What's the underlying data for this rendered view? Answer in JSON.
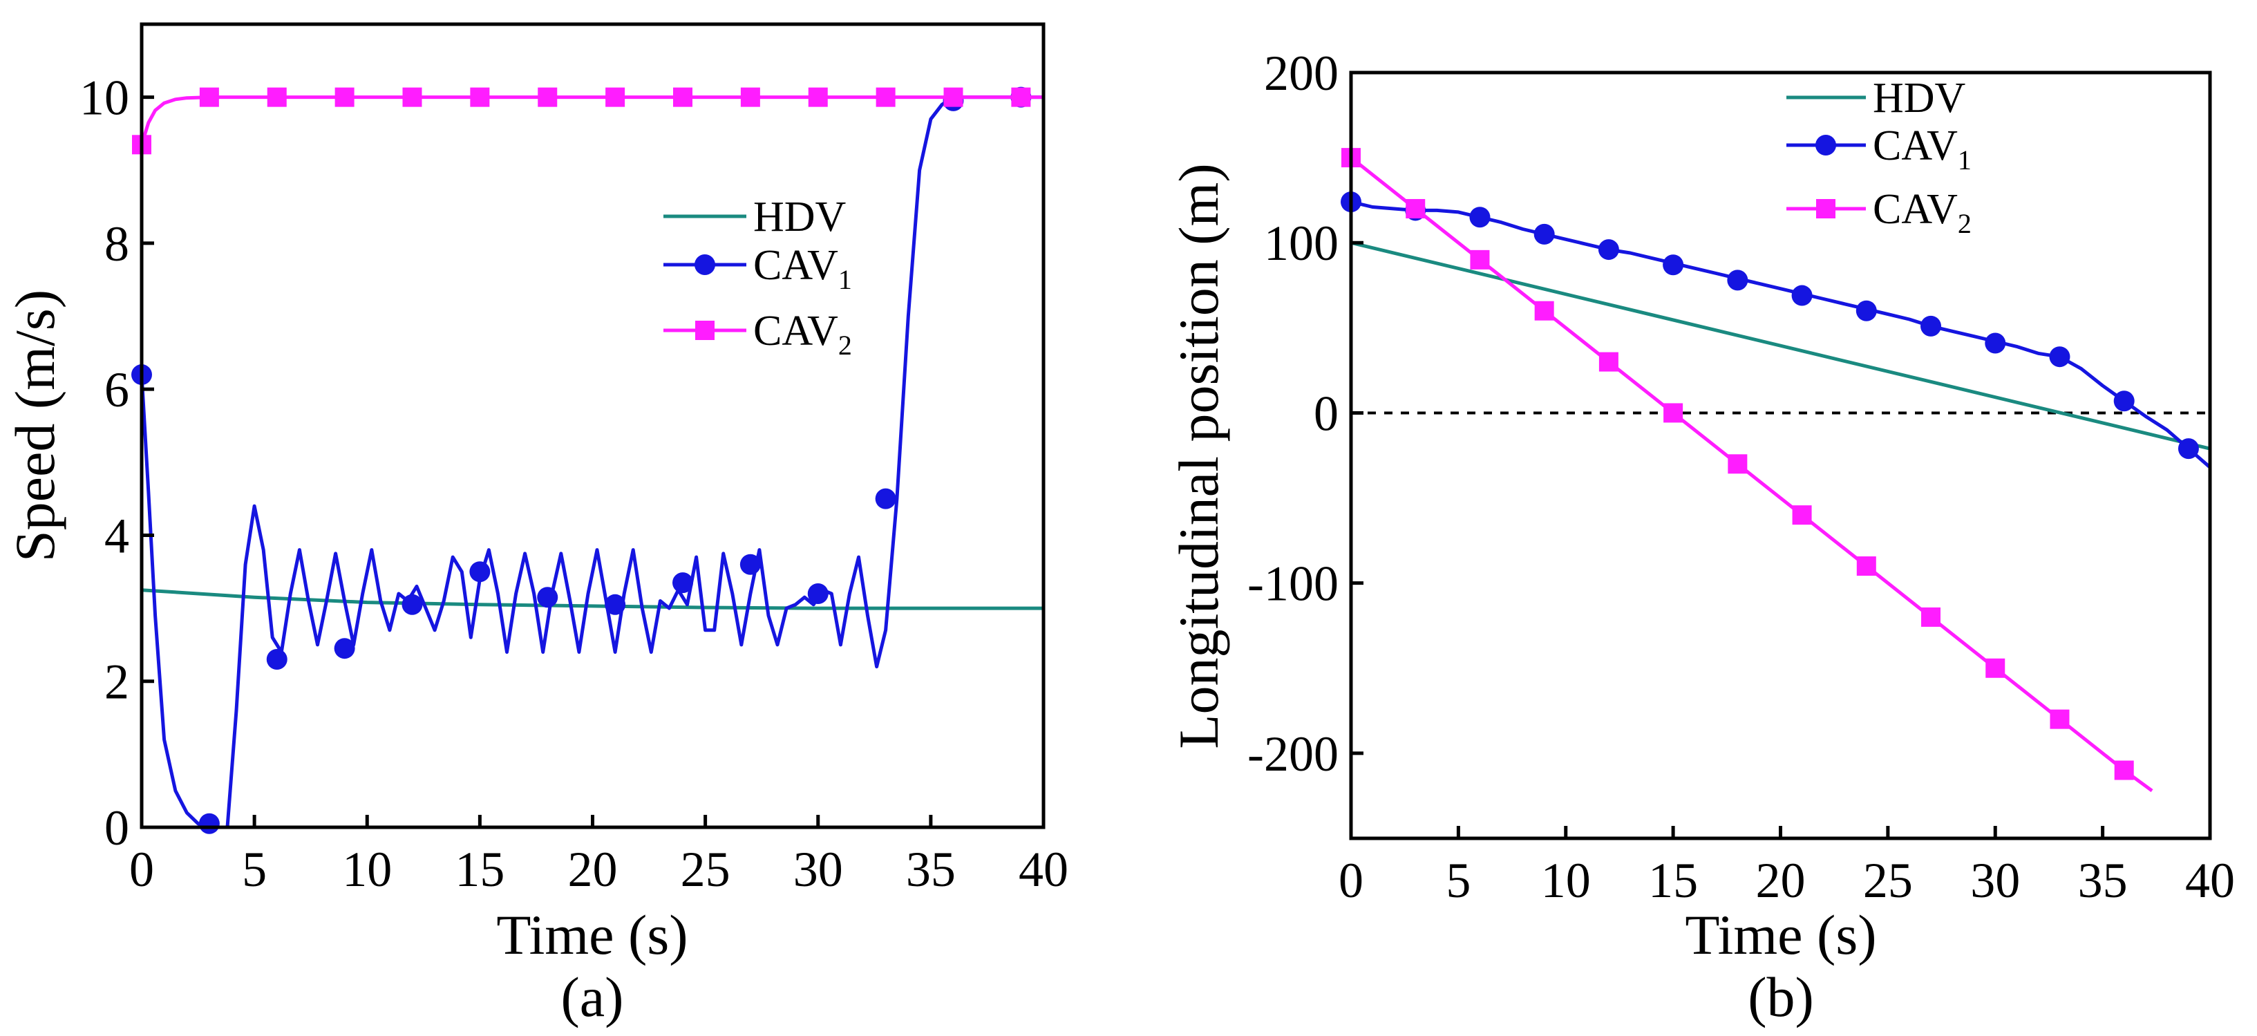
{
  "chart_data": [
    {
      "type": "line",
      "panel": "(a)",
      "xlabel": "Time (s)",
      "ylabel": "Speed (m/s)",
      "xlim": [
        0,
        40
      ],
      "ylim": [
        0,
        11
      ],
      "xticks": [
        "0",
        "5",
        "10",
        "15",
        "20",
        "25",
        "30",
        "35",
        "40"
      ],
      "yticks": [
        "0",
        "2",
        "4",
        "6",
        "8",
        "10"
      ],
      "legend_position": "right-upper-middle",
      "series": [
        {
          "name": "HDV",
          "color": "#1a8a80",
          "marker": "none",
          "x": [
            0,
            5,
            10,
            15,
            20,
            25,
            30,
            35,
            40
          ],
          "y": [
            3.25,
            3.15,
            3.08,
            3.05,
            3.03,
            3.01,
            3.0,
            3.0,
            3.0
          ],
          "marker_x": []
        },
        {
          "name": "CAV",
          "subscript": "1",
          "color": "#1515e0",
          "marker": "circle",
          "x": [
            0,
            0.3,
            0.6,
            1,
            1.5,
            2,
            2.5,
            3,
            3.5,
            3.8,
            4.2,
            4.6,
            5,
            5.4,
            5.8,
            6.2,
            6.6,
            7,
            7.4,
            7.8,
            8.2,
            8.6,
            9,
            9.4,
            9.8,
            10.2,
            10.6,
            11,
            11.4,
            11.8,
            12.2,
            12.6,
            13,
            13.4,
            13.8,
            14.2,
            14.6,
            15,
            15.4,
            15.8,
            16.2,
            16.6,
            17,
            17.4,
            17.8,
            18.2,
            18.6,
            19,
            19.4,
            19.8,
            20.2,
            20.6,
            21,
            21.4,
            21.8,
            22.2,
            22.6,
            23,
            23.4,
            23.8,
            24.2,
            24.6,
            25,
            25.4,
            25.8,
            26.2,
            26.6,
            27,
            27.4,
            27.8,
            28.2,
            28.6,
            29,
            29.4,
            29.8,
            30.2,
            30.6,
            31,
            31.4,
            31.8,
            32.2,
            32.6,
            33,
            33.5,
            34,
            34.5,
            35,
            35.5,
            36,
            37,
            38,
            39,
            40
          ],
          "y": [
            6.2,
            4.6,
            2.9,
            1.2,
            0.5,
            0.2,
            0.05,
            0.0,
            0.0,
            0.0,
            1.6,
            3.6,
            4.4,
            3.8,
            2.6,
            2.4,
            3.2,
            3.8,
            3.1,
            2.5,
            3.1,
            3.75,
            3.1,
            2.5,
            3.2,
            3.8,
            3.1,
            2.7,
            3.2,
            3.1,
            3.3,
            3.0,
            2.7,
            3.1,
            3.7,
            3.5,
            2.6,
            3.4,
            3.8,
            3.2,
            2.4,
            3.2,
            3.75,
            3.2,
            2.4,
            3.2,
            3.75,
            3.1,
            2.4,
            3.2,
            3.8,
            3.1,
            2.4,
            3.2,
            3.8,
            3.0,
            2.4,
            3.1,
            3.0,
            3.25,
            3.05,
            3.7,
            2.7,
            2.7,
            3.75,
            3.2,
            2.5,
            3.2,
            3.8,
            2.9,
            2.5,
            3.0,
            3.05,
            3.15,
            3.05,
            3.25,
            3.2,
            2.5,
            3.2,
            3.7,
            2.9,
            2.2,
            2.7,
            4.5,
            7.0,
            9.0,
            9.7,
            9.9,
            10.0,
            10.0,
            10.0,
            10.0,
            10.0
          ],
          "marker_x": [
            0,
            3,
            6,
            9,
            12,
            15,
            18,
            21,
            24,
            27,
            30,
            33,
            36,
            39
          ],
          "marker_y": [
            6.2,
            0.05,
            2.3,
            2.45,
            3.05,
            3.5,
            3.15,
            3.05,
            3.35,
            3.6,
            3.2,
            4.5,
            9.95,
            10.0
          ]
        },
        {
          "name": "CAV",
          "subscript": "2",
          "color": "#ff1dff",
          "marker": "square",
          "x": [
            0,
            0.3,
            0.6,
            1,
            1.5,
            2,
            3,
            5,
            10,
            20,
            30,
            40
          ],
          "y": [
            9.35,
            9.65,
            9.82,
            9.92,
            9.97,
            9.99,
            10.0,
            10.0,
            10.0,
            10.0,
            10.0,
            10.0
          ],
          "marker_x": [
            0,
            3,
            6,
            9,
            12,
            15,
            18,
            21,
            24,
            27,
            30,
            33,
            36,
            39
          ],
          "marker_y": [
            9.35,
            10.0,
            10.0,
            10.0,
            10.0,
            10.0,
            10.0,
            10.0,
            10.0,
            10.0,
            10.0,
            10.0,
            10.0,
            10.0
          ]
        }
      ]
    },
    {
      "type": "line",
      "panel": "(b)",
      "xlabel": "Time (s)",
      "ylabel": "Longitudinal position (m)",
      "xlim": [
        0,
        40
      ],
      "ylim": [
        -250,
        200
      ],
      "xticks": [
        "0",
        "5",
        "10",
        "15",
        "20",
        "25",
        "30",
        "35",
        "40"
      ],
      "yticks": [
        "200",
        "100",
        "0",
        "-100",
        "-200"
      ],
      "ytick_values": [
        200,
        100,
        0,
        -100,
        -200
      ],
      "reference_line_y": 0,
      "legend_position": "top-middle",
      "series": [
        {
          "name": "HDV",
          "color": "#1a8a80",
          "marker": "none",
          "x": [
            0,
            40
          ],
          "y": [
            100,
            -21
          ],
          "marker_x": []
        },
        {
          "name": "CAV",
          "subscript": "1",
          "color": "#1515e0",
          "marker": "circle",
          "x": [
            0,
            1,
            2,
            3,
            4,
            5,
            6,
            7,
            8,
            9,
            10,
            11,
            12,
            13,
            14,
            15,
            16,
            17,
            18,
            19,
            20,
            21,
            22,
            23,
            24,
            25,
            26,
            27,
            28,
            29,
            30,
            31,
            32,
            33,
            34,
            35,
            36,
            37,
            38,
            39,
            40
          ],
          "y": [
            124,
            121,
            120,
            119,
            119,
            118,
            115,
            112,
            108,
            105,
            102,
            99,
            96,
            94,
            91,
            88,
            85,
            82,
            79,
            76,
            73,
            70,
            67,
            64,
            61,
            58,
            55,
            51,
            48,
            45,
            42,
            39,
            35,
            33,
            26,
            16,
            7,
            -2,
            -10,
            -21,
            -32
          ],
          "marker_x": [
            0,
            3,
            6,
            9,
            12,
            15,
            18,
            21,
            24,
            27,
            30,
            33,
            36,
            39
          ],
          "marker_y": [
            124,
            119,
            115,
            105,
            96,
            87,
            78,
            69,
            60,
            51,
            41,
            33,
            7,
            -21
          ]
        },
        {
          "name": "CAV",
          "subscript": "2",
          "color": "#ff1dff",
          "marker": "square",
          "x": [
            0,
            3,
            6,
            9,
            12,
            15,
            18,
            21,
            24,
            27,
            30,
            33,
            36,
            37.3
          ],
          "y": [
            150,
            120,
            90,
            60,
            30,
            0,
            -30,
            -60,
            -90,
            -120,
            -150,
            -180,
            -210,
            -222
          ],
          "marker_x": [
            0,
            3,
            6,
            9,
            12,
            15,
            18,
            21,
            24,
            27,
            30,
            33,
            36
          ],
          "marker_y": [
            150,
            120,
            90,
            60,
            30,
            0,
            -30,
            -60,
            -90,
            -120,
            -150,
            -180,
            -210
          ]
        }
      ]
    }
  ]
}
